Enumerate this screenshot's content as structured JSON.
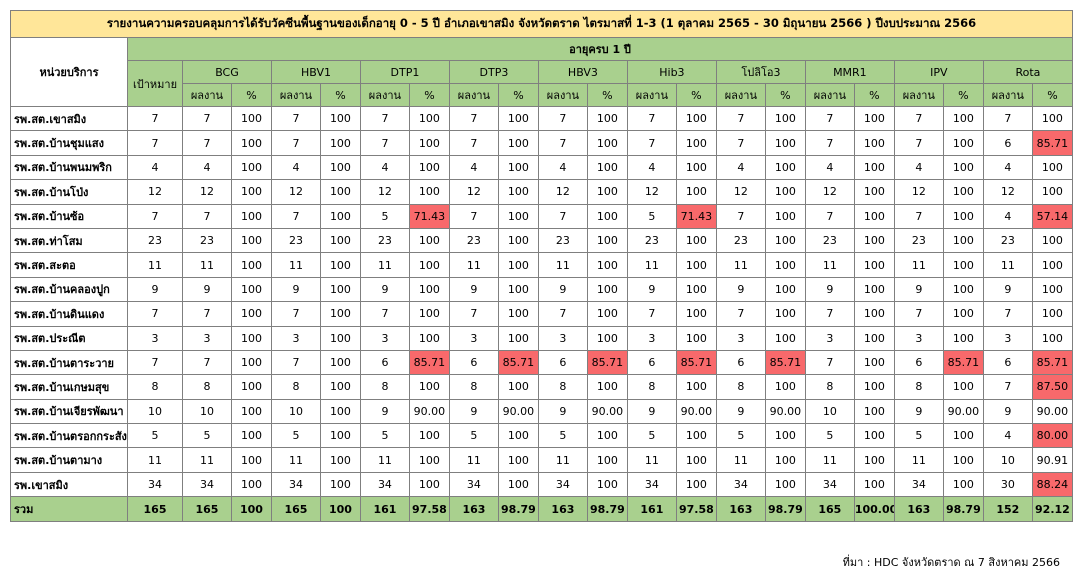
{
  "title": "รายงานความครอบคลุมการได้รับวัคซีนพื้นฐานของเด็กอายุ 0 - 5 ปี อำเภอเขาสมิง จังหวัดตราด ไตรมาสที่ 1-3 (1 ตุลาคม 2565 - 30 มิถุนายน 2566 ) ปีงบประมาณ 2566",
  "headers": {
    "unit": "หน่วยบริการ",
    "age_group": "อายุครบ 1 ปี",
    "target": "เป้าหมาย",
    "result": "ผลงาน",
    "percent": "%",
    "vaccines": [
      "BCG",
      "HBV1",
      "DTP1",
      "DTP3",
      "HBV3",
      "Hib3",
      "โปลิโอ3",
      "MMR1",
      "IPV",
      "Rota"
    ]
  },
  "colors": {
    "title_bg": "#ffe699",
    "header_bg": "#a9d08e",
    "low_coverage": "#f8696b"
  },
  "rows": [
    {
      "name": "รพ.สต.เขาสมิง",
      "target": "7",
      "cells": [
        "7",
        "100",
        "7",
        "100",
        "7",
        "100",
        "7",
        "100",
        "7",
        "100",
        "7",
        "100",
        "7",
        "100",
        "7",
        "100",
        "7",
        "100",
        "7",
        "100"
      ]
    },
    {
      "name": "รพ.สต.บ้านชุมแสง",
      "target": "7",
      "cells": [
        "7",
        "100",
        "7",
        "100",
        "7",
        "100",
        "7",
        "100",
        "7",
        "100",
        "7",
        "100",
        "7",
        "100",
        "7",
        "100",
        "7",
        "100",
        "6",
        "85.71"
      ]
    },
    {
      "name": "รพ.สต.บ้านพนมพริก",
      "target": "4",
      "cells": [
        "4",
        "100",
        "4",
        "100",
        "4",
        "100",
        "4",
        "100",
        "4",
        "100",
        "4",
        "100",
        "4",
        "100",
        "4",
        "100",
        "4",
        "100",
        "4",
        "100"
      ]
    },
    {
      "name": "รพ.สต.บ้านโป่ง",
      "target": "12",
      "cells": [
        "12",
        "100",
        "12",
        "100",
        "12",
        "100",
        "12",
        "100",
        "12",
        "100",
        "12",
        "100",
        "12",
        "100",
        "12",
        "100",
        "12",
        "100",
        "12",
        "100"
      ]
    },
    {
      "name": "รพ.สต.บ้านซ้อ",
      "target": "7",
      "cells": [
        "7",
        "100",
        "7",
        "100",
        "5",
        "71.43",
        "7",
        "100",
        "7",
        "100",
        "5",
        "71.43",
        "7",
        "100",
        "7",
        "100",
        "7",
        "100",
        "4",
        "57.14"
      ]
    },
    {
      "name": "รพ.สต.ท่าโสม",
      "target": "23",
      "cells": [
        "23",
        "100",
        "23",
        "100",
        "23",
        "100",
        "23",
        "100",
        "23",
        "100",
        "23",
        "100",
        "23",
        "100",
        "23",
        "100",
        "23",
        "100",
        "23",
        "100"
      ]
    },
    {
      "name": "รพ.สต.สะตอ",
      "target": "11",
      "cells": [
        "11",
        "100",
        "11",
        "100",
        "11",
        "100",
        "11",
        "100",
        "11",
        "100",
        "11",
        "100",
        "11",
        "100",
        "11",
        "100",
        "11",
        "100",
        "11",
        "100"
      ]
    },
    {
      "name": "รพ.สต.บ้านคลองปูก",
      "target": "9",
      "cells": [
        "9",
        "100",
        "9",
        "100",
        "9",
        "100",
        "9",
        "100",
        "9",
        "100",
        "9",
        "100",
        "9",
        "100",
        "9",
        "100",
        "9",
        "100",
        "9",
        "100"
      ]
    },
    {
      "name": "รพ.สต.บ้านดินแดง",
      "target": "7",
      "cells": [
        "7",
        "100",
        "7",
        "100",
        "7",
        "100",
        "7",
        "100",
        "7",
        "100",
        "7",
        "100",
        "7",
        "100",
        "7",
        "100",
        "7",
        "100",
        "7",
        "100"
      ]
    },
    {
      "name": "รพ.สต.ประณีต",
      "target": "3",
      "cells": [
        "3",
        "100",
        "3",
        "100",
        "3",
        "100",
        "3",
        "100",
        "3",
        "100",
        "3",
        "100",
        "3",
        "100",
        "3",
        "100",
        "3",
        "100",
        "3",
        "100"
      ]
    },
    {
      "name": "รพ.สต.บ้านตาระวาย",
      "target": "7",
      "cells": [
        "7",
        "100",
        "7",
        "100",
        "6",
        "85.71",
        "6",
        "85.71",
        "6",
        "85.71",
        "6",
        "85.71",
        "6",
        "85.71",
        "7",
        "100",
        "6",
        "85.71",
        "6",
        "85.71"
      ]
    },
    {
      "name": "รพ.สต.บ้านเกษมสุข",
      "target": "8",
      "cells": [
        "8",
        "100",
        "8",
        "100",
        "8",
        "100",
        "8",
        "100",
        "8",
        "100",
        "8",
        "100",
        "8",
        "100",
        "8",
        "100",
        "8",
        "100",
        "7",
        "87.50"
      ]
    },
    {
      "name": "รพ.สต.บ้านเจียรพัฒนา",
      "target": "10",
      "cells": [
        "10",
        "100",
        "10",
        "100",
        "9",
        "90.00",
        "9",
        "90.00",
        "9",
        "90.00",
        "9",
        "90.00",
        "9",
        "90.00",
        "10",
        "100",
        "9",
        "90.00",
        "9",
        "90.00"
      ]
    },
    {
      "name": "รพ.สต.บ้านตรอกกระสังข์",
      "target": "5",
      "cells": [
        "5",
        "100",
        "5",
        "100",
        "5",
        "100",
        "5",
        "100",
        "5",
        "100",
        "5",
        "100",
        "5",
        "100",
        "5",
        "100",
        "5",
        "100",
        "4",
        "80.00"
      ]
    },
    {
      "name": "รพ.สต.บ้านตามาง",
      "target": "11",
      "cells": [
        "11",
        "100",
        "11",
        "100",
        "11",
        "100",
        "11",
        "100",
        "11",
        "100",
        "11",
        "100",
        "11",
        "100",
        "11",
        "100",
        "11",
        "100",
        "10",
        "90.91"
      ]
    },
    {
      "name": "รพ.เขาสมิง",
      "target": "34",
      "cells": [
        "34",
        "100",
        "34",
        "100",
        "34",
        "100",
        "34",
        "100",
        "34",
        "100",
        "34",
        "100",
        "34",
        "100",
        "34",
        "100",
        "34",
        "100",
        "30",
        "88.24"
      ]
    }
  ],
  "total": {
    "name": "รวม",
    "target": "165",
    "cells": [
      "165",
      "100",
      "165",
      "100",
      "161",
      "97.58",
      "163",
      "98.79",
      "163",
      "98.79",
      "161",
      "97.58",
      "163",
      "98.79",
      "165",
      "100.00",
      "163",
      "98.79",
      "152",
      "92.12"
    ]
  },
  "source": "ที่มา : HDC จังหวัดตราด ณ 7 สิงหาคม 2566"
}
